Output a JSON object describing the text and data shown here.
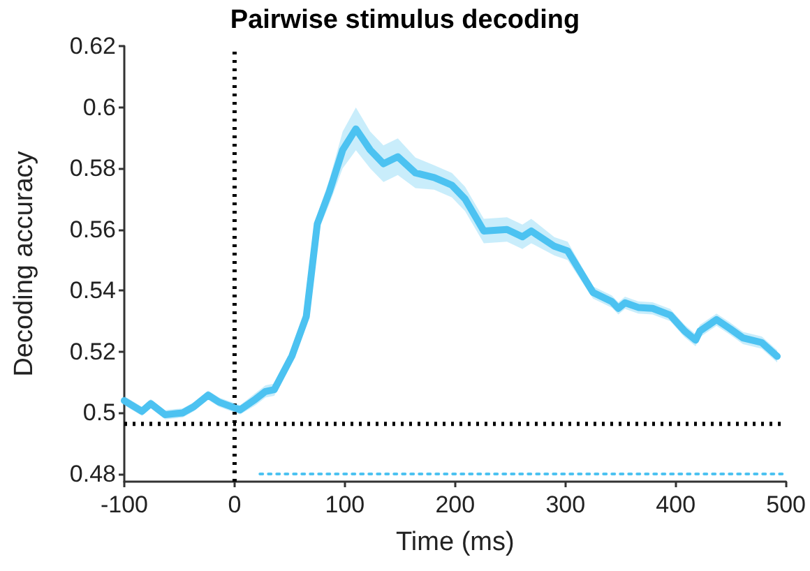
{
  "chart_data": {
    "type": "line",
    "title": "Pairwise stimulus decoding",
    "xlabel": "Time (ms)",
    "ylabel": "Decoding accuracy",
    "x": [
      -100,
      -84,
      -76,
      -63,
      -47,
      -37,
      -24,
      -14,
      5,
      19,
      28,
      36,
      52,
      65,
      75,
      86,
      98,
      110,
      123,
      135,
      148,
      164,
      181,
      197,
      209,
      226,
      247,
      261,
      269,
      290,
      302,
      325,
      342,
      348,
      354,
      366,
      379,
      395,
      408,
      418,
      422,
      437,
      449,
      461,
      478,
      492
    ],
    "series": [
      {
        "color": "#4cc2f1",
        "values": [
          0.504,
          0.5005,
          0.503,
          0.4994,
          0.5,
          0.502,
          0.5058,
          0.5035,
          0.501,
          0.5045,
          0.507,
          0.5076,
          0.5186,
          0.5315,
          0.5618,
          0.5724,
          0.586,
          0.5929,
          0.586,
          0.5815,
          0.5838,
          0.5785,
          0.577,
          0.5745,
          0.57,
          0.5595,
          0.56,
          0.5576,
          0.5595,
          0.5545,
          0.553,
          0.5394,
          0.5364,
          0.5342,
          0.536,
          0.5345,
          0.5342,
          0.532,
          0.5268,
          0.5238,
          0.5268,
          0.5305,
          0.5276,
          0.5245,
          0.523,
          0.5185
        ],
        "lower": [
          0.5025,
          0.499,
          0.5015,
          0.4979,
          0.4985,
          0.5005,
          0.5043,
          0.502,
          0.4995,
          0.5025,
          0.505,
          0.5056,
          0.5166,
          0.5295,
          0.5588,
          0.5684,
          0.58,
          0.5859,
          0.58,
          0.5755,
          0.5778,
          0.5735,
          0.573,
          0.5705,
          0.566,
          0.5555,
          0.556,
          0.5536,
          0.5555,
          0.5515,
          0.55,
          0.5374,
          0.5344,
          0.5322,
          0.534,
          0.5325,
          0.5322,
          0.53,
          0.5248,
          0.5218,
          0.5248,
          0.5285,
          0.5256,
          0.5225,
          0.521,
          0.5165
        ],
        "upper": [
          0.5055,
          0.502,
          0.5045,
          0.5009,
          0.5015,
          0.5035,
          0.5073,
          0.505,
          0.5025,
          0.5065,
          0.509,
          0.5096,
          0.5206,
          0.5335,
          0.5648,
          0.5764,
          0.592,
          0.5999,
          0.592,
          0.5875,
          0.5898,
          0.5835,
          0.581,
          0.5785,
          0.574,
          0.5635,
          0.564,
          0.5616,
          0.5635,
          0.5575,
          0.556,
          0.5414,
          0.5384,
          0.5362,
          0.538,
          0.5365,
          0.5362,
          0.534,
          0.5288,
          0.5258,
          0.5288,
          0.5325,
          0.5296,
          0.5265,
          0.525,
          0.5205
        ]
      },
      {
        "color": "#4cc2f1",
        "x": [
          23,
          500
        ],
        "values": [
          0.48,
          0.48
        ],
        "line_style": "dotted"
      }
    ],
    "xlim": [
      -100,
      500
    ],
    "xticks": [
      -100,
      0,
      100,
      200,
      300,
      400,
      500
    ],
    "ylim": [
      0.4775,
      0.62
    ],
    "yticks": [
      0.48,
      0.5,
      0.52,
      0.54,
      0.56,
      0.58,
      0.6,
      0.62
    ],
    "ref_lines": [
      {
        "axis": "x",
        "value": 0,
        "color": "#000000",
        "line_style": "dotted"
      },
      {
        "axis": "y",
        "value": 0.4964,
        "color": "#000000",
        "line_style": "dotted"
      }
    ],
    "grid": false,
    "marker": "none",
    "line_style": "solid"
  }
}
